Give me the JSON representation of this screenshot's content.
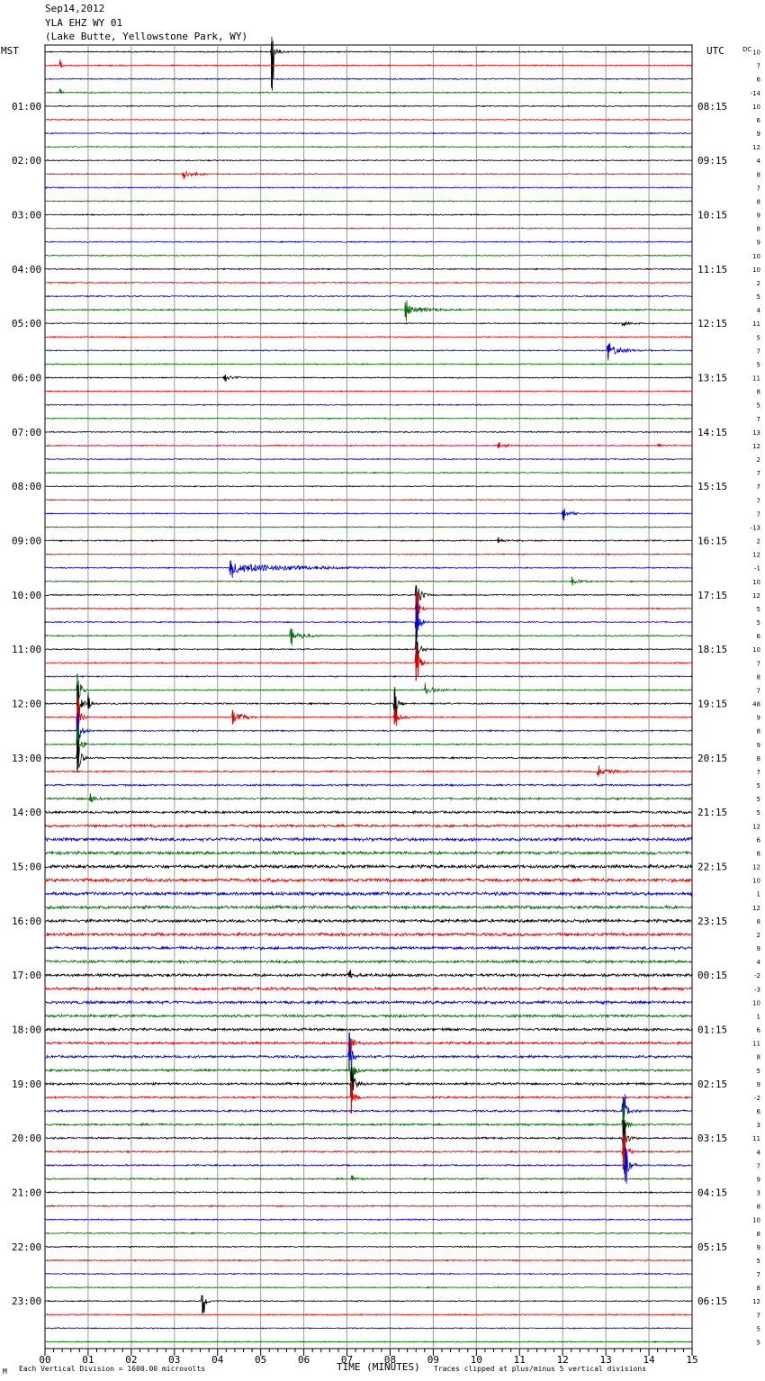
{
  "header": {
    "date": "Sep14,2012",
    "station": "YLA EHZ WY 01",
    "location": "(Lake Butte, Yellowstone Park, WY)"
  },
  "left_axis_label": "MST",
  "right_axis_label": "UTC",
  "dc_label": "DC",
  "footer": {
    "scale_note": "Each Vertical Division = 1600.00 microvolts",
    "clip_note": "Traces clipped at plus/minus 5 vertical divisions",
    "corner_mark": "M"
  },
  "colors": {
    "trace_cycle": [
      "#000000",
      "#dd0000",
      "#0000cc",
      "#006600"
    ],
    "grid": "#999999"
  },
  "chart_data": {
    "type": "line",
    "title": "",
    "xlabel": "TIME (MINUTES)",
    "ylabel": "",
    "xlim": [
      0,
      15
    ],
    "x_ticks": [
      "00",
      "01",
      "02",
      "03",
      "04",
      "05",
      "06",
      "07",
      "08",
      "09",
      "10",
      "11",
      "12",
      "13",
      "14",
      "15"
    ],
    "rows_per_hour": 4,
    "minutes_per_row": 15,
    "hour_labels_local": [
      "01:00",
      "02:00",
      "03:00",
      "04:00",
      "05:00",
      "06:00",
      "07:00",
      "08:00",
      "09:00",
      "10:00",
      "11:00",
      "12:00",
      "13:00",
      "14:00",
      "15:00",
      "16:00",
      "17:00",
      "18:00",
      "19:00",
      "20:00",
      "21:00",
      "22:00",
      "23:00"
    ],
    "hour_labels_utc": [
      "08:15",
      "09:15",
      "10:15",
      "11:15",
      "12:15",
      "13:15",
      "14:15",
      "15:15",
      "16:15",
      "17:15",
      "18:15",
      "19:15",
      "20:15",
      "21:15",
      "22:15",
      "23:15",
      "00:15",
      "01:15",
      "02:15",
      "03:15",
      "04:15",
      "05:15",
      "06:15"
    ],
    "dc_offsets": [
      "10",
      "7",
      "6",
      "-14",
      "10",
      "6",
      "9",
      "12",
      "4",
      "8",
      "7",
      "8",
      "9",
      "8",
      "9",
      "10",
      "10",
      "2",
      "5",
      "4",
      "11",
      "5",
      "7",
      "5",
      "11",
      "8",
      "5",
      "7",
      "13",
      "12",
      "2",
      "7",
      "7",
      "7",
      "7",
      "-13",
      "2",
      "12",
      "-1",
      "10",
      "12",
      "5",
      "5",
      "6",
      "10",
      "7",
      "8",
      "7",
      "48",
      "9",
      "8",
      "9",
      "8",
      "7",
      "5",
      "5",
      "5",
      "12",
      "6",
      "8",
      "12",
      "10",
      "1",
      "12",
      "8",
      "2",
      "9",
      "4",
      "-2",
      "-3",
      "10",
      "1",
      "6",
      "11",
      "8",
      "5",
      "9",
      "-2",
      "6",
      "3",
      "11",
      "4",
      "7",
      "9",
      "3",
      "8",
      "10",
      "8",
      "9",
      "5",
      "7",
      "8",
      "12",
      "7",
      "5",
      "5"
    ],
    "row_noise": [
      0.55,
      0.55,
      0.55,
      0.55,
      0.5,
      0.5,
      0.5,
      0.5,
      0.5,
      0.5,
      0.5,
      0.5,
      0.5,
      0.5,
      0.5,
      0.5,
      0.55,
      0.55,
      0.6,
      0.6,
      0.5,
      0.5,
      0.5,
      0.5,
      0.5,
      0.5,
      0.5,
      0.5,
      0.55,
      0.55,
      0.5,
      0.5,
      0.5,
      0.5,
      0.5,
      0.5,
      0.6,
      0.5,
      0.5,
      0.5,
      0.55,
      0.55,
      0.55,
      0.55,
      0.55,
      0.55,
      0.55,
      0.55,
      0.7,
      0.6,
      0.6,
      0.6,
      0.7,
      0.7,
      0.8,
      0.9,
      1.1,
      1.2,
      1.4,
      1.4,
      1.5,
      1.5,
      1.5,
      1.4,
      1.4,
      1.4,
      1.3,
      1.2,
      1.3,
      1.3,
      1.3,
      1.2,
      1.2,
      1.1,
      1.1,
      1.0,
      1.0,
      0.9,
      0.9,
      0.9,
      0.8,
      0.8,
      0.7,
      0.7,
      0.6,
      0.6,
      0.6,
      0.6,
      0.55,
      0.55,
      0.55,
      0.5,
      0.5,
      0.5,
      0.5,
      0.5
    ],
    "events": [
      {
        "row": 0,
        "minute": 5.25,
        "amp": 14,
        "up": 10,
        "down": 40,
        "decay": 0.1
      },
      {
        "row": 1,
        "minute": 0.35,
        "amp": 3,
        "up": 4,
        "down": 4,
        "decay": 0.06
      },
      {
        "row": 3,
        "minute": 0.35,
        "amp": 3,
        "up": 4,
        "down": 2,
        "decay": 0.06
      },
      {
        "row": 9,
        "minute": 3.2,
        "amp": 4,
        "up": 3,
        "down": 3,
        "decay": 0.35
      },
      {
        "row": 19,
        "minute": 8.35,
        "amp": 6,
        "up": 8,
        "down": 8,
        "decay": 0.5
      },
      {
        "row": 20,
        "minute": 13.4,
        "amp": 2,
        "up": 2,
        "down": 2,
        "decay": 0.3
      },
      {
        "row": 22,
        "minute": 13.05,
        "amp": 6,
        "up": 6,
        "down": 8,
        "decay": 0.4
      },
      {
        "row": 24,
        "minute": 4.15,
        "amp": 2.5,
        "up": 3,
        "down": 3,
        "decay": 0.3
      },
      {
        "row": 29,
        "minute": 10.5,
        "amp": 1.5,
        "up": 2,
        "down": 2,
        "decay": 0.6
      },
      {
        "row": 29,
        "minute": 14.2,
        "amp": 1.5,
        "up": 2,
        "down": 2,
        "decay": 0.3
      },
      {
        "row": 34,
        "minute": 12.0,
        "amp": 4,
        "up": 6,
        "down": 6,
        "decay": 0.25
      },
      {
        "row": 36,
        "minute": 10.5,
        "amp": 2,
        "up": 2,
        "down": 2,
        "decay": 0.3
      },
      {
        "row": 38,
        "minute": 4.3,
        "amp": 6,
        "up": 8,
        "down": 8,
        "decay": 1.6
      },
      {
        "row": 39,
        "minute": 12.2,
        "amp": 3,
        "up": 4,
        "down": 4,
        "decay": 0.3
      },
      {
        "row": 40,
        "minute": 8.6,
        "amp": 14,
        "up": 10,
        "down": 30,
        "decay": 0.12
      },
      {
        "row": 41,
        "minute": 8.6,
        "amp": 14,
        "up": 20,
        "down": 20,
        "decay": 0.1
      },
      {
        "row": 42,
        "minute": 8.6,
        "amp": 14,
        "up": 20,
        "down": 20,
        "decay": 0.1
      },
      {
        "row": 43,
        "minute": 5.7,
        "amp": 6,
        "up": 8,
        "down": 8,
        "decay": 0.35
      },
      {
        "row": 44,
        "minute": 8.6,
        "amp": 14,
        "up": 20,
        "down": 20,
        "decay": 0.1
      },
      {
        "row": 45,
        "minute": 8.6,
        "amp": 14,
        "up": 20,
        "down": 20,
        "decay": 0.1
      },
      {
        "row": 47,
        "minute": 8.8,
        "amp": 4,
        "up": 5,
        "down": 5,
        "decay": 0.4
      },
      {
        "row": 47,
        "minute": 0.75,
        "amp": 14,
        "up": 18,
        "down": 20,
        "decay": 0.1
      },
      {
        "row": 48,
        "minute": 0.75,
        "amp": 14,
        "up": 20,
        "down": 20,
        "decay": 0.1
      },
      {
        "row": 48,
        "minute": 1.0,
        "amp": 4,
        "up": 8,
        "down": 5,
        "decay": 0.12
      },
      {
        "row": 48,
        "minute": 8.1,
        "amp": 8,
        "up": 14,
        "down": 14,
        "decay": 0.12
      },
      {
        "row": 49,
        "minute": 0.75,
        "amp": 14,
        "up": 20,
        "down": 20,
        "decay": 0.1
      },
      {
        "row": 49,
        "minute": 4.35,
        "amp": 6,
        "up": 8,
        "down": 8,
        "decay": 0.3
      },
      {
        "row": 49,
        "minute": 8.1,
        "amp": 5,
        "up": 8,
        "down": 8,
        "decay": 0.2
      },
      {
        "row": 50,
        "minute": 0.75,
        "amp": 14,
        "up": 20,
        "down": 20,
        "decay": 0.1
      },
      {
        "row": 51,
        "minute": 0.75,
        "amp": 14,
        "up": 20,
        "down": 20,
        "decay": 0.1
      },
      {
        "row": 52,
        "minute": 0.75,
        "amp": 14,
        "up": 20,
        "down": 16,
        "decay": 0.1
      },
      {
        "row": 53,
        "minute": 12.8,
        "amp": 3,
        "up": 4,
        "down": 4,
        "decay": 0.6
      },
      {
        "row": 55,
        "minute": 1.05,
        "amp": 4,
        "up": 5,
        "down": 5,
        "decay": 0.2
      },
      {
        "row": 68,
        "minute": 7.05,
        "amp": 3,
        "up": 4,
        "down": 4,
        "decay": 0.2
      },
      {
        "row": 73,
        "minute": 7.05,
        "amp": 8,
        "up": 12,
        "down": 12,
        "decay": 0.15
      },
      {
        "row": 74,
        "minute": 7.05,
        "amp": 12,
        "up": 16,
        "down": 16,
        "decay": 0.1
      },
      {
        "row": 75,
        "minute": 7.1,
        "amp": 14,
        "up": 16,
        "down": 16,
        "decay": 0.1
      },
      {
        "row": 76,
        "minute": 7.1,
        "amp": 14,
        "up": 18,
        "down": 16,
        "decay": 0.1
      },
      {
        "row": 77,
        "minute": 7.1,
        "amp": 14,
        "up": 18,
        "down": 18,
        "decay": 0.1
      },
      {
        "row": 78,
        "minute": 13.4,
        "amp": 14,
        "up": 16,
        "down": 20,
        "decay": 0.12
      },
      {
        "row": 79,
        "minute": 13.4,
        "amp": 14,
        "up": 20,
        "down": 20,
        "decay": 0.1
      },
      {
        "row": 80,
        "minute": 13.4,
        "amp": 14,
        "up": 20,
        "down": 20,
        "decay": 0.1
      },
      {
        "row": 81,
        "minute": 13.4,
        "amp": 14,
        "up": 20,
        "down": 20,
        "decay": 0.1
      },
      {
        "row": 82,
        "minute": 13.45,
        "amp": 14,
        "up": 20,
        "down": 18,
        "decay": 0.12
      },
      {
        "row": 83,
        "minute": 7.1,
        "amp": 2,
        "up": 3,
        "down": 3,
        "decay": 0.2
      },
      {
        "row": 92,
        "minute": 3.65,
        "amp": 10,
        "up": 6,
        "down": 14,
        "decay": 0.1
      }
    ]
  }
}
